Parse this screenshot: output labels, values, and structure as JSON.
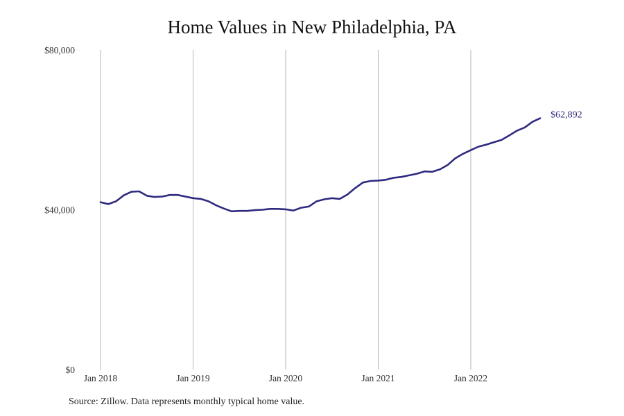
{
  "chart_data": {
    "type": "line",
    "title": "Home Values in New Philadelphia, PA",
    "xlabel": "",
    "ylabel": "",
    "x_tick_labels": [
      "Jan 2018",
      "Jan 2019",
      "Jan 2020",
      "Jan 2021",
      "Jan 2022"
    ],
    "y_tick_labels": [
      "$0",
      "$40,000",
      "$80,000"
    ],
    "y_ticks": [
      0,
      40000,
      80000
    ],
    "ylim": [
      0,
      80000
    ],
    "xlim": [
      "2018-01",
      "2022-12"
    ],
    "grid": "vertical lines at each January",
    "series": [
      {
        "color": "#2e2a7f",
        "end_label": "$62,892",
        "x": [
          "2018-01",
          "2018-02",
          "2018-03",
          "2018-04",
          "2018-05",
          "2018-06",
          "2018-07",
          "2018-08",
          "2018-09",
          "2018-10",
          "2018-11",
          "2018-12",
          "2019-01",
          "2019-02",
          "2019-03",
          "2019-04",
          "2019-05",
          "2019-06",
          "2019-07",
          "2019-08",
          "2019-09",
          "2019-10",
          "2019-11",
          "2019-12",
          "2020-01",
          "2020-02",
          "2020-03",
          "2020-04",
          "2020-05",
          "2020-06",
          "2020-07",
          "2020-08",
          "2020-09",
          "2020-10",
          "2020-11",
          "2020-12",
          "2021-01",
          "2021-02",
          "2021-03",
          "2021-04",
          "2021-05",
          "2021-06",
          "2021-07",
          "2021-08",
          "2021-09",
          "2021-10",
          "2021-11",
          "2021-12",
          "2022-01",
          "2022-02",
          "2022-03",
          "2022-04",
          "2022-05",
          "2022-06",
          "2022-07",
          "2022-08",
          "2022-09",
          "2022-10"
        ],
        "values": [
          41900,
          41400,
          42100,
          43600,
          44500,
          44600,
          43500,
          43200,
          43300,
          43700,
          43700,
          43300,
          42900,
          42700,
          42100,
          41100,
          40300,
          39600,
          39700,
          39700,
          39900,
          40000,
          40200,
          40200,
          40100,
          39800,
          40500,
          40800,
          42100,
          42600,
          42900,
          42700,
          43800,
          45400,
          46800,
          47200,
          47300,
          47500,
          48000,
          48200,
          48600,
          49000,
          49600,
          49500,
          50100,
          51200,
          52900,
          54000,
          54900,
          55800,
          56300,
          56900,
          57500,
          58600,
          59800,
          60600,
          62000,
          62892
        ]
      }
    ]
  },
  "source_note": "Source: Zillow. Data represents monthly typical home value."
}
